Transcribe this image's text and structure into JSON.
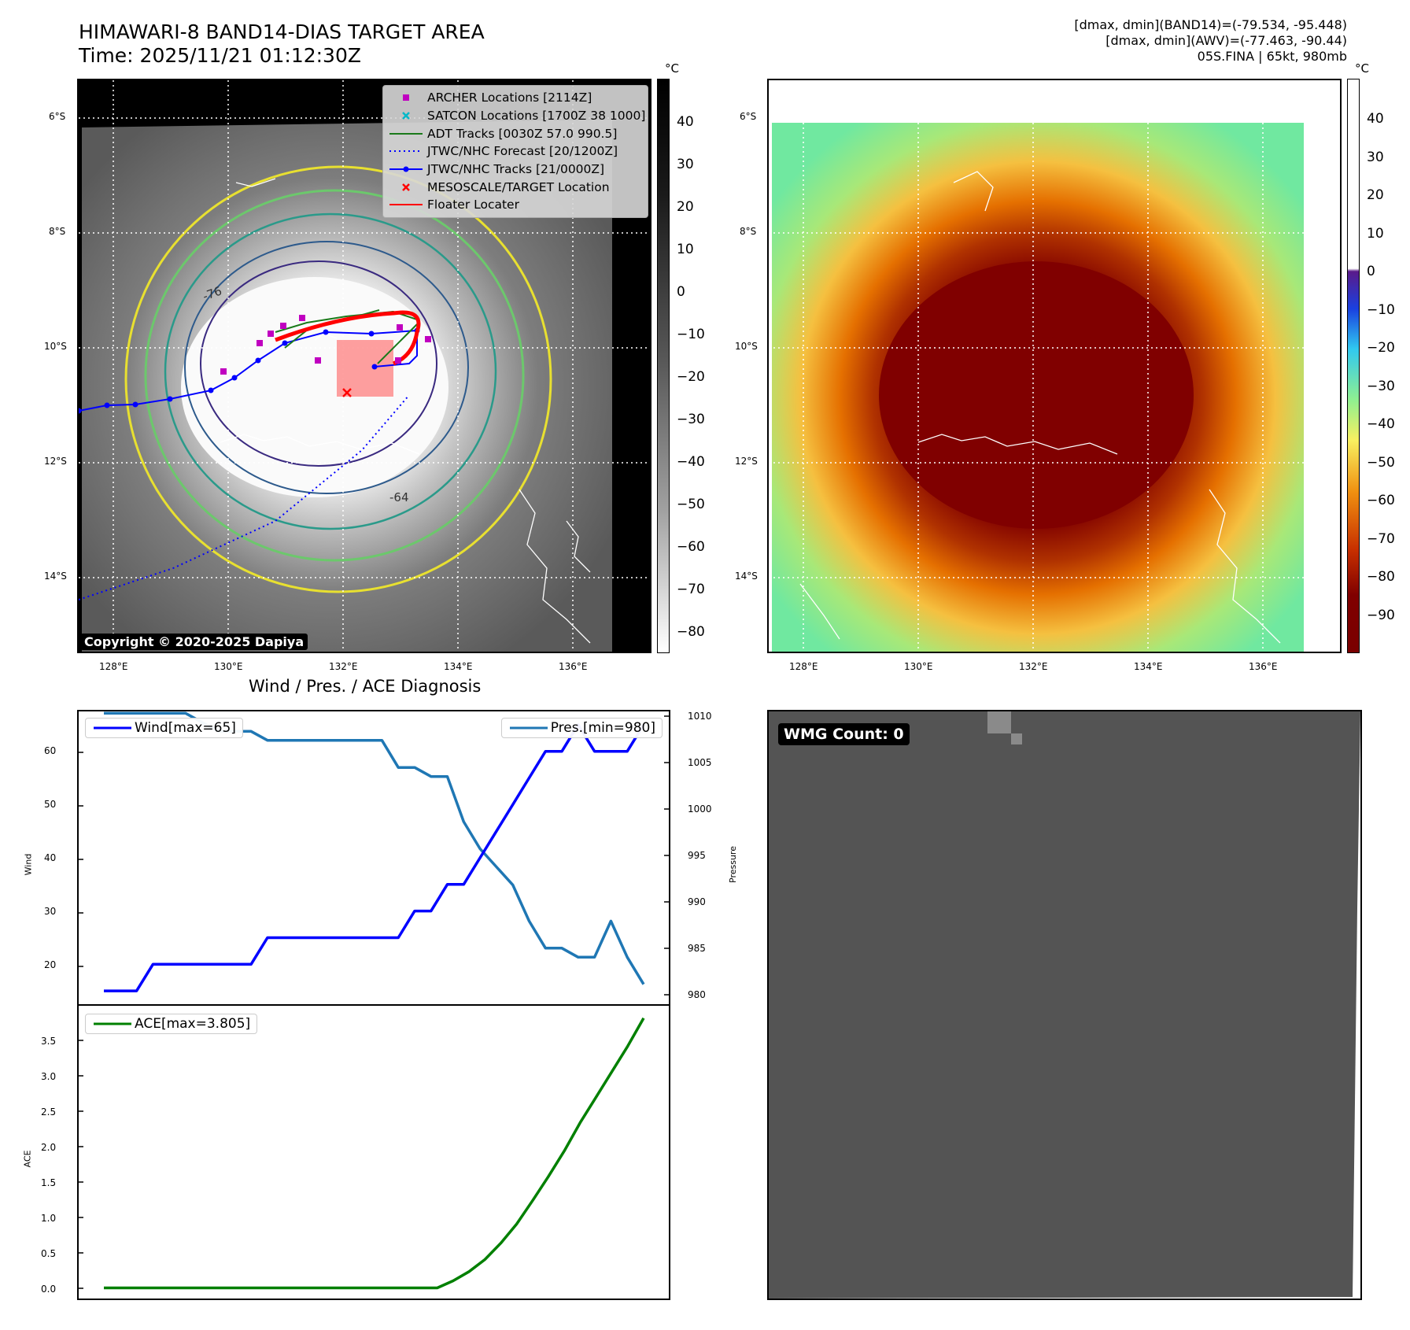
{
  "header": {
    "title_line1": "HIMAWARI-8 BAND14-DIAS TARGET AREA",
    "title_line2": "Time: 2025/11/21 01:12:30Z",
    "stat_line1": "[dmax, dmin](BAND14)=(-79.534, -95.448)",
    "stat_line2": "[dmax, dmin](AWV)=(-77.463, -90.44)",
    "stat_line3": "05S.FINA | 65kt, 980mb"
  },
  "map_axes": {
    "lat_ticks": [
      "6°S",
      "8°S",
      "10°S",
      "12°S",
      "14°S"
    ],
    "lon_ticks": [
      "128°E",
      "130°E",
      "132°E",
      "134°E",
      "136°E"
    ]
  },
  "ir_panel": {
    "colorbar_unit": "°C",
    "colorbar_ticks": [
      "40",
      "30",
      "20",
      "10",
      "0",
      "−10",
      "−20",
      "−30",
      "−40",
      "−50",
      "−60",
      "−70",
      "−80"
    ],
    "contour_labels": [
      "-76",
      "-64"
    ],
    "copyright": "Copyright © 2020-2025 Dapiya",
    "legend": [
      {
        "label": "ARCHER Locations [2114Z]",
        "color": "#c000c0",
        "symbol": "square"
      },
      {
        "label": "SATCON Locations [1700Z 38 1000]",
        "color": "#00b8c8",
        "symbol": "x"
      },
      {
        "label": "ADT Tracks [0030Z 57.0 990.5]",
        "color": "#1a7a1a",
        "symbol": "line"
      },
      {
        "label": "JTWC/NHC Forecast [20/1200Z]",
        "color": "#0000ff",
        "symbol": "dotted"
      },
      {
        "label": "JTWC/NHC Tracks [21/0000Z]",
        "color": "#0000ff",
        "symbol": "line-dot"
      },
      {
        "label": "MESOSCALE/TARGET Location",
        "color": "#ff0000",
        "symbol": "x"
      },
      {
        "label": "Floater Locater",
        "color": "#ff0000",
        "symbol": "line"
      }
    ]
  },
  "awv_panel": {
    "colorbar_unit": "°C",
    "colorbar_ticks": [
      "40",
      "30",
      "20",
      "10",
      "0",
      "−10",
      "−20",
      "−30",
      "−40",
      "−50",
      "−60",
      "−70",
      "−80",
      "−90"
    ]
  },
  "diag_panel": {
    "title": "Wind / Pres. / ACE Diagnosis",
    "wind_axis_label": "Wind",
    "pressure_axis_label": "Pressure",
    "ace_axis_label": "ACE",
    "wind_legend": "Wind[max=65]",
    "pres_legend": "Pres.[min=980]",
    "ace_legend": "ACE[max=3.805]",
    "wind_ticks": [
      "60",
      "50",
      "40",
      "30",
      "20"
    ],
    "pres_ticks": [
      "1010",
      "1005",
      "1000",
      "995",
      "990",
      "985",
      "980"
    ],
    "ace_ticks": [
      "3.5",
      "3.0",
      "2.5",
      "2.0",
      "1.5",
      "1.0",
      "0.5",
      "0.0"
    ]
  },
  "wmg_panel": {
    "badge": "WMG Count: 0"
  },
  "colors": {
    "wind": "#0000ff",
    "pressure": "#1f77b4",
    "ace": "#008000",
    "wmg_bg": "#545454"
  },
  "chart_data": [
    {
      "type": "line",
      "title": "Wind / Pres. / ACE Diagnosis",
      "xlabel": "",
      "ylabel": "Wind",
      "ylabel2": "Pressure",
      "ylim": [
        12.5,
        67.5
      ],
      "ylim2": [
        977.8,
        1010.2
      ],
      "series": [
        {
          "name": "Wind[max=65]",
          "axis": "left",
          "values": [
            15,
            15,
            15,
            20,
            20,
            20,
            20,
            20,
            20,
            20,
            25,
            25,
            25,
            25,
            25,
            25,
            25,
            25,
            25,
            30,
            30,
            35,
            35,
            40,
            45,
            50,
            55,
            60,
            60,
            65,
            60,
            60,
            60,
            65
          ]
        },
        {
          "name": "Pres.[min=980]",
          "axis": "right",
          "values": [
            1010,
            1010,
            1010,
            1010,
            1010,
            1010,
            1009,
            1008,
            1008,
            1008,
            1007,
            1007,
            1007,
            1007,
            1007,
            1007,
            1007,
            1007,
            1004,
            1004,
            1003,
            1003,
            998,
            995,
            993,
            991,
            987,
            984,
            984,
            983,
            983,
            987,
            983,
            980
          ]
        }
      ]
    },
    {
      "type": "line",
      "title": "",
      "xlabel": "",
      "ylabel": "ACE",
      "ylim": [
        -0.15,
        3.98
      ],
      "series": [
        {
          "name": "ACE[max=3.805]",
          "values": [
            0,
            0,
            0,
            0,
            0,
            0,
            0,
            0,
            0,
            0,
            0,
            0,
            0,
            0,
            0,
            0,
            0,
            0,
            0,
            0,
            0,
            0,
            0.1,
            0.23,
            0.4,
            0.63,
            0.9,
            1.23,
            1.57,
            1.93,
            2.33,
            2.69,
            3.05,
            3.41,
            3.805
          ]
        }
      ]
    }
  ]
}
